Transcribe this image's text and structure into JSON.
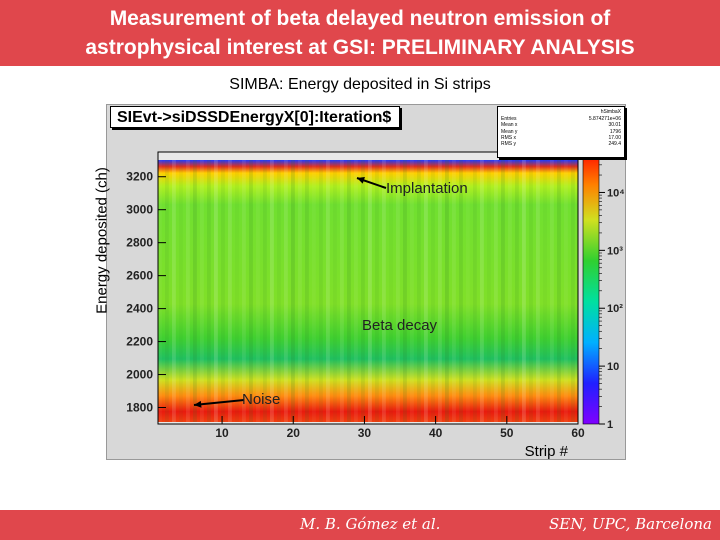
{
  "header": {
    "line1": "Measurement of beta delayed neutron emission of",
    "line2": "astrophysical interest at GSI: PRELIMINARY ANALYSIS"
  },
  "subtitle": "SIMBA: Energy deposited in Si strips",
  "footer": {
    "left": "M. B. Gómez et al.",
    "right": "SEN, UPC, Barcelona"
  },
  "chart_data": {
    "type": "heatmap",
    "title": "SIEvt->siDSSDEnergyX[0]:Iteration$",
    "xlabel": "Strip #",
    "ylabel": "Energy deposited (ch)",
    "xlim": [
      1,
      60
    ],
    "ylim": [
      1700,
      3350
    ],
    "x_ticks": [
      10,
      20,
      30,
      40,
      50,
      60
    ],
    "y_ticks": [
      1800,
      2000,
      2200,
      2400,
      2600,
      2800,
      3000,
      3200
    ],
    "color_scale": "log",
    "colorbar_range": [
      1,
      50000
    ],
    "colorbar_ticks": [
      {
        "label": "1",
        "value": 1
      },
      {
        "label": "10",
        "value": 10
      },
      {
        "label": "10²",
        "value": 100
      },
      {
        "label": "10³",
        "value": 1000
      },
      {
        "label": "10⁴",
        "value": 10000
      }
    ],
    "stats_box": {
      "name": "hSimbaX",
      "rows": [
        {
          "label": "Entries",
          "value": "5.874271e+06"
        },
        {
          "label": "Mean x",
          "value": "30.01"
        },
        {
          "label": "Mean y",
          "value": "1796"
        },
        {
          "label": "RMS x",
          "value": "17.00"
        },
        {
          "label": "RMS y",
          "value": "249.4"
        }
      ]
    },
    "annotations": [
      {
        "text": "Implantation",
        "x": 33,
        "y": 3250
      },
      {
        "text": "Beta decay",
        "x": 40,
        "y": 2250
      },
      {
        "text": "Noise",
        "x": 10,
        "y": 1800
      }
    ],
    "colors": {
      "high": "#e81a0e",
      "mid": "#ffd000",
      "body": "#8ae026",
      "low": "#20c060",
      "top": "#4060ff"
    }
  }
}
